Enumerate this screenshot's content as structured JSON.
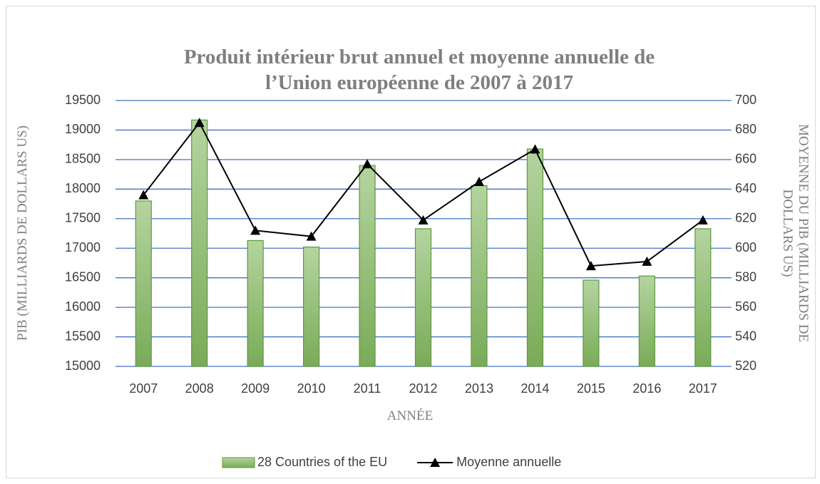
{
  "chart_data": {
    "type": "bar-line",
    "title": "Produit intérieur brut annuel et moyenne annuelle de l’Union européenne de 2007 à 2017",
    "x_label": "ANNÉE",
    "y_label": "PIB (MILLIARDS DE DOLLARS US)",
    "y2_label": "MOYENNE DU PIB (MILLIARDS DE DOLLARS US)",
    "categories": [
      "2007",
      "2008",
      "2009",
      "2010",
      "2011",
      "2012",
      "2013",
      "2014",
      "2015",
      "2016",
      "2017"
    ],
    "series": [
      {
        "name": "28 Countries of the EU",
        "type": "bar",
        "color": "#8dba6f",
        "values": [
          17800,
          19170,
          17130,
          17020,
          18400,
          17330,
          18060,
          18680,
          16460,
          16530,
          17330
        ]
      },
      {
        "name": "Moyenne annuelle",
        "type": "line",
        "axis": "y2",
        "color": "#000000",
        "values": [
          636,
          685,
          612,
          608,
          657,
          619,
          645,
          667,
          588,
          591,
          619
        ]
      }
    ],
    "ylim": [
      15000,
      19500
    ],
    "yticks": [
      15000,
      15500,
      16000,
      16500,
      17000,
      17500,
      18000,
      18500,
      19000,
      19500
    ],
    "y2lim": [
      520,
      700
    ],
    "y2ticks": [
      520,
      540,
      560,
      580,
      600,
      620,
      640,
      660,
      680,
      700
    ],
    "grid": true,
    "legend": "bottom"
  }
}
